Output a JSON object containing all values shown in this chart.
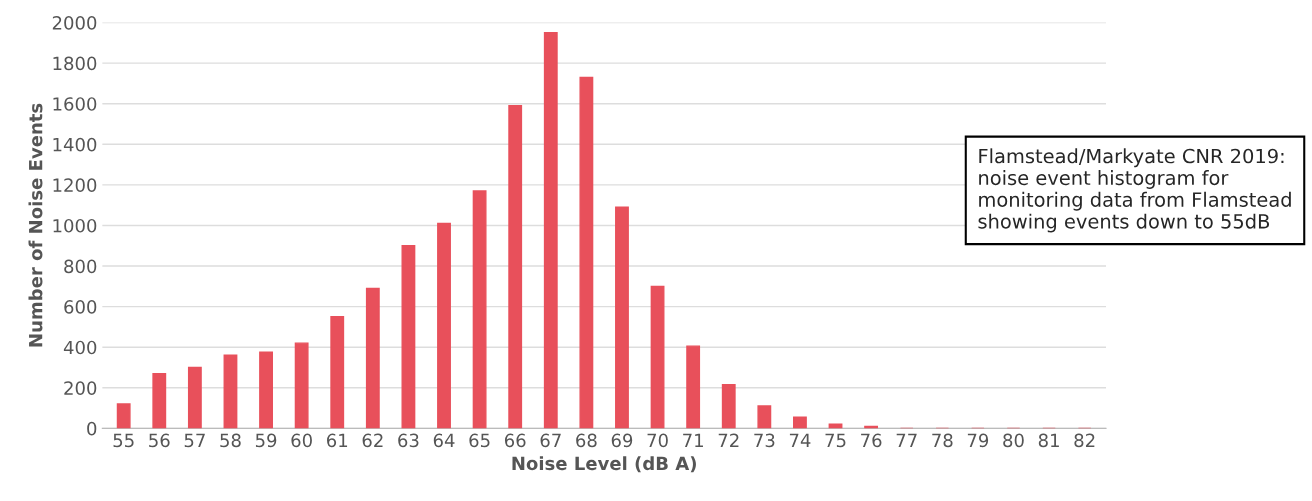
{
  "chart_data": {
    "type": "bar",
    "xlabel": "Noise Level (dB A)",
    "ylabel": "Number of Noise Events",
    "categories": [
      "55",
      "56",
      "57",
      "58",
      "59",
      "60",
      "61",
      "62",
      "63",
      "64",
      "65",
      "66",
      "67",
      "68",
      "69",
      "70",
      "71",
      "72",
      "73",
      "74",
      "75",
      "76",
      "77",
      "78",
      "79",
      "80",
      "81",
      "82"
    ],
    "values": [
      120,
      270,
      300,
      360,
      375,
      420,
      550,
      690,
      900,
      1010,
      1170,
      1590,
      1950,
      1730,
      1090,
      700,
      405,
      215,
      110,
      55,
      20,
      10,
      0,
      0,
      0,
      0,
      0,
      0
    ],
    "color": "#e8505b",
    "ylim": [
      0,
      2000
    ],
    "yticks": [
      0,
      200,
      400,
      600,
      800,
      1000,
      1200,
      1400,
      1600,
      1800,
      2000
    ],
    "grid": "y",
    "annotations": [
      "Flamstead/Markyate CNR 2019: noise event histogram for monitoring data from Flamstead showing events down to 55dB"
    ]
  }
}
